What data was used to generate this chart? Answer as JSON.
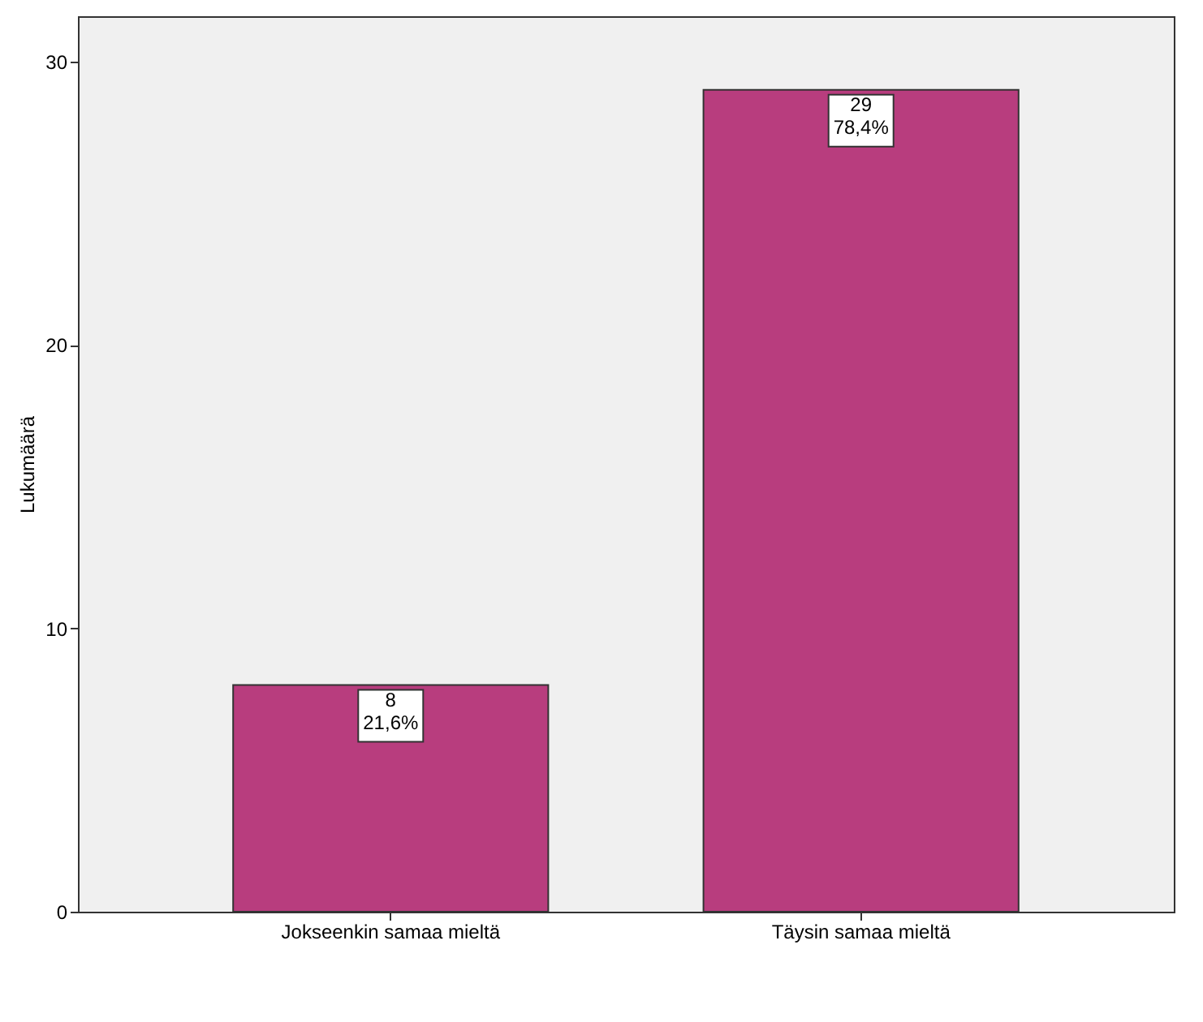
{
  "chart_data": {
    "type": "bar",
    "ylabel": "Lukumäärä",
    "categories": [
      "Jokseenkin samaa mieltä",
      "Täysin samaa mieltä"
    ],
    "values": [
      8,
      29
    ],
    "color": "#b83d7e",
    "value_labels": [
      "8\n21,6%",
      "29\n78,4%"
    ],
    "ylim": [
      0,
      31.6
    ],
    "yticks": [
      0,
      10,
      20,
      30
    ],
    "grid": false
  }
}
